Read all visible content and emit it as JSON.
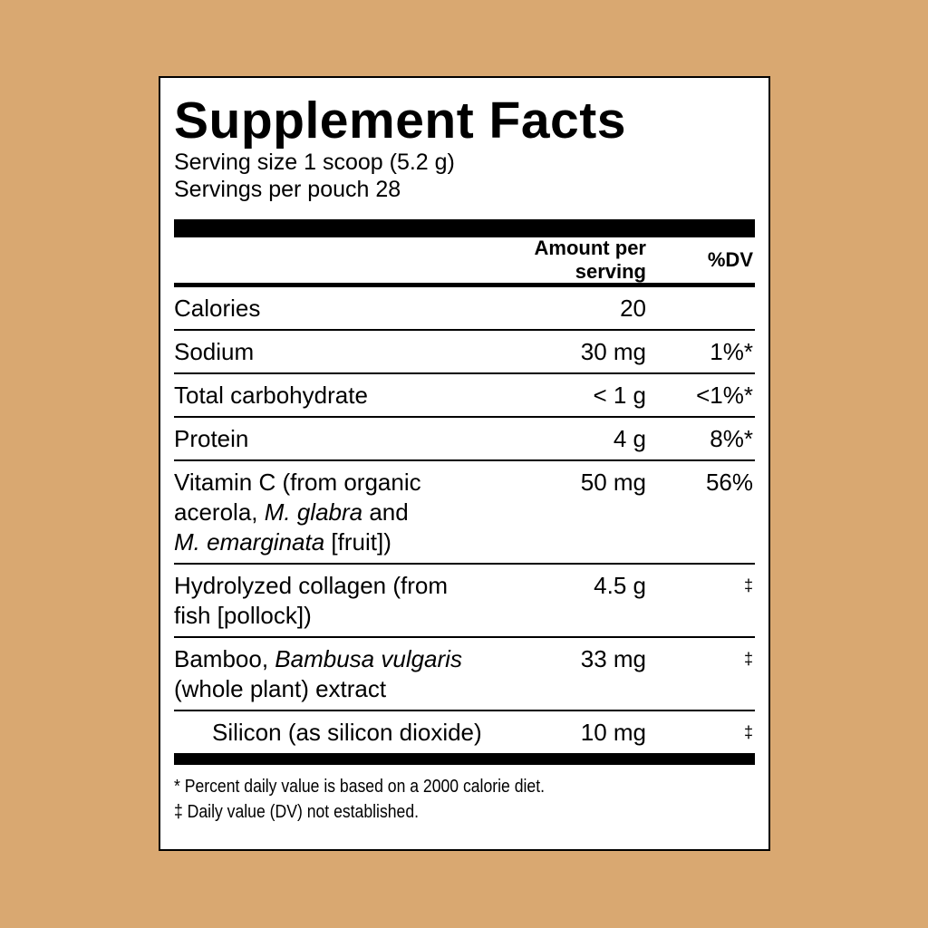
{
  "title": "Supplement Facts",
  "serving_size": "Serving size 1 scoop (5.2 g)",
  "servings_per": "Servings per pouch 28",
  "header": {
    "amount": "Amount per serving",
    "dv": "%DV"
  },
  "rows": [
    {
      "name": [
        [
          {
            "t": "Calories"
          }
        ]
      ],
      "amount": "20",
      "dv": ""
    },
    {
      "name": [
        [
          {
            "t": "Sodium"
          }
        ]
      ],
      "amount": "30 mg",
      "dv": "1%*"
    },
    {
      "name": [
        [
          {
            "t": "Total carbohydrate"
          }
        ]
      ],
      "amount": "< 1 g",
      "dv": "<1%*"
    },
    {
      "name": [
        [
          {
            "t": "Protein"
          }
        ]
      ],
      "amount": "4 g",
      "dv": "8%*"
    },
    {
      "name": [
        [
          {
            "t": "Vitamin C (from organic"
          }
        ],
        [
          {
            "t": "acerola, "
          },
          {
            "t": "M. glabra",
            "i": true
          },
          {
            "t": " and"
          }
        ],
        [
          {
            "t": "M. emarginata",
            "i": true
          },
          {
            "t": " [fruit])"
          }
        ]
      ],
      "amount": "50 mg",
      "dv": "56%"
    },
    {
      "name": [
        [
          {
            "t": "Hydrolyzed collagen (from"
          }
        ],
        [
          {
            "t": "fish [pollock])"
          }
        ]
      ],
      "amount": "4.5 g",
      "dv": "‡"
    },
    {
      "name": [
        [
          {
            "t": "Bamboo, "
          },
          {
            "t": "Bambusa vulgaris",
            "i": true
          }
        ],
        [
          {
            "t": "(whole plant) extract"
          }
        ]
      ],
      "amount": "33 mg",
      "dv": "‡"
    },
    {
      "name": [
        [
          {
            "t": "Silicon (as silicon dioxide)"
          }
        ]
      ],
      "amount": "10 mg",
      "dv": "‡",
      "indent": true
    }
  ],
  "footnotes": [
    "* Percent daily value is based on a 2000 calorie diet.",
    "‡ Daily value (DV) not established."
  ]
}
